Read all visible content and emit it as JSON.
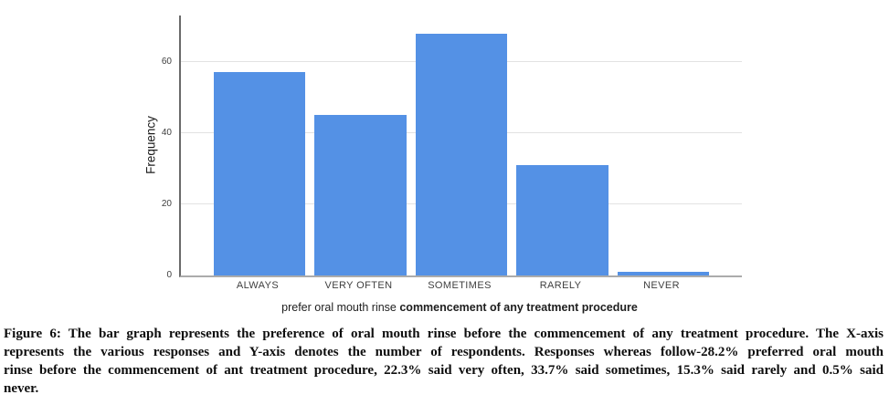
{
  "chart_data": {
    "type": "bar",
    "categories": [
      "ALWAYS",
      "VERY OFTEN",
      "SOMETIMES",
      "RARELY",
      "NEVER"
    ],
    "values": [
      57,
      45,
      68,
      31,
      1
    ],
    "percentages_from_caption": [
      28.2,
      22.3,
      33.7,
      15.3,
      0.5
    ],
    "title": "",
    "xlabel": "prefer oral mouth rinse commencement of any treatment procedure",
    "xlabel_parts": {
      "regular": "prefer oral mouth rinse ",
      "bold": "commencement of any treatment procedure"
    },
    "ylabel": "Frequency",
    "yticks": [
      0,
      20,
      40,
      60
    ],
    "ylim": [
      0,
      73
    ],
    "grid": "horizontal",
    "legend_position": "none",
    "bar_color": "#5491E5",
    "gridline_color": "#e2e2e2",
    "y_axis_color": "#6a6a6a",
    "x_axis_color": "#ababab"
  },
  "figure": {
    "caption_lines": [
      "Figure 6: The bar graph represents the preference of oral mouth rinse before the commencement of any treatment procedure. The X-axis",
      "represents the various responses and Y-axis denotes the number of respondents. Responses whereas follow-28.2% preferred oral mouth",
      "rinse before the commencement of ant treatment procedure, 22.3% said very often, 33.7% said sometimes, 15.3% said rarely and 0.5% said",
      "never."
    ]
  }
}
